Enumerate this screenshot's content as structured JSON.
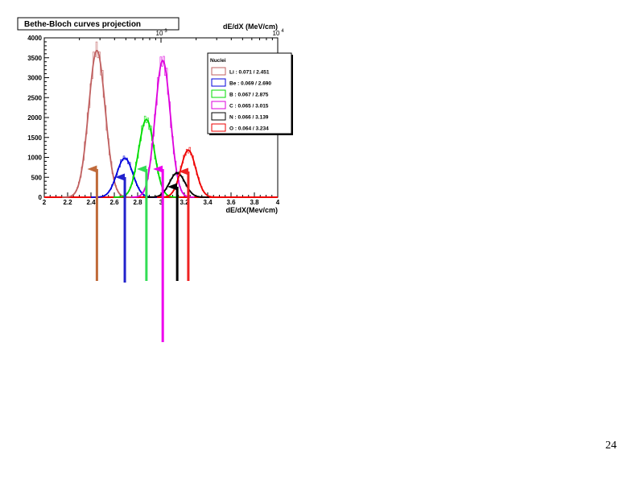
{
  "slide": {
    "page_number": "24"
  },
  "chart_data": {
    "type": "line",
    "title": "Bethe-Bloch curves projection",
    "xlabel": "dE/dX(Mev/cm)",
    "top_axis_label": "dE/dX (MeV/cm)",
    "top_axis_ticks": [
      "10",
      "10"
    ],
    "top_axis_exponents": [
      "3",
      "4"
    ],
    "xlim": [
      2,
      4
    ],
    "ylim": [
      0,
      4000
    ],
    "x_ticks": [
      "2",
      "2.2",
      "2.4",
      "2.6",
      "2.8",
      "3",
      "3.2",
      "3.4",
      "3.6",
      "3.8",
      "4"
    ],
    "y_ticks": [
      "0",
      "500",
      "1000",
      "1500",
      "2000",
      "2500",
      "3000",
      "3500",
      "4000"
    ],
    "legend": {
      "title": "Nuclei",
      "position": "top-right"
    },
    "series": [
      {
        "name": "Li : 0.071 / 2.451",
        "sigma": 0.071,
        "mean": 2.451,
        "amplitude": 3680,
        "color": "#c06060"
      },
      {
        "name": "Be : 0.069 / 2.690",
        "sigma": 0.069,
        "mean": 2.69,
        "amplitude": 980,
        "color": "#0000dd"
      },
      {
        "name": "B : 0.067 / 2.875",
        "sigma": 0.067,
        "mean": 2.875,
        "amplitude": 1950,
        "color": "#00dd00"
      },
      {
        "name": "C : 0.065 / 3.015",
        "sigma": 0.065,
        "mean": 3.015,
        "amplitude": 3430,
        "color": "#dd00dd"
      },
      {
        "name": "N : 0.066 / 3.139",
        "sigma": 0.066,
        "mean": 3.139,
        "amplitude": 610,
        "color": "#000000"
      },
      {
        "name": "O : 0.064 / 3.234",
        "sigma": 0.064,
        "mean": 3.234,
        "amplitude": 1180,
        "color": "#ee0000"
      }
    ],
    "arrow_colors": [
      "#c06a3a",
      "#2222cc",
      "#33dd55",
      "#ee00ee",
      "#000000",
      "#ee2222"
    ]
  }
}
